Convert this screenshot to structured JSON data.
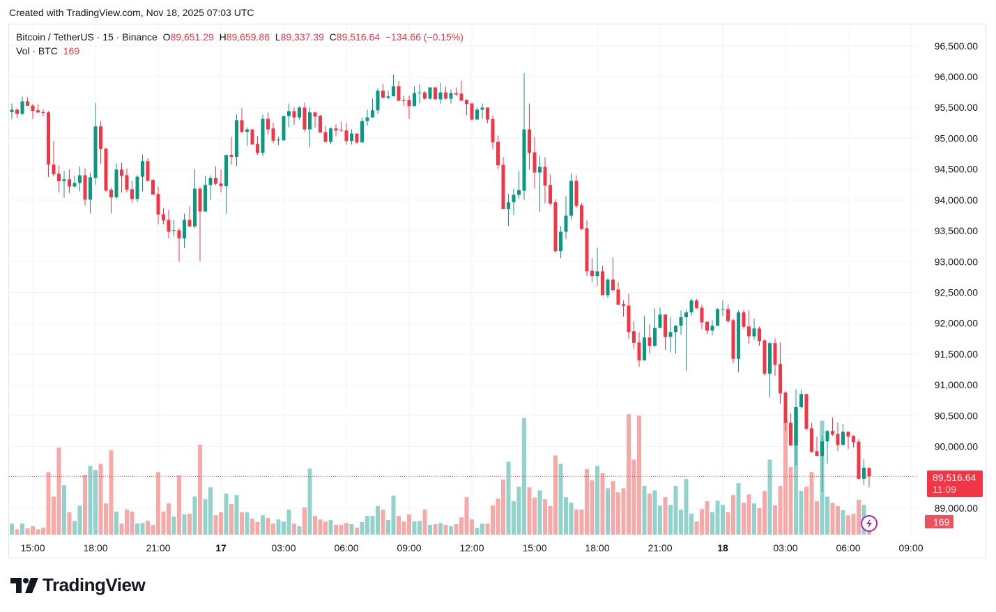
{
  "header": {
    "created": "Created with TradingView.com, Nov 18, 2025 07:03 UTC"
  },
  "legend": {
    "symbol": "Bitcoin / TetherUS · 15 · Binance",
    "o_label": "O",
    "o": "89,651.29",
    "h_label": "H",
    "h": "89,659.86",
    "l_label": "L",
    "l": "89,337.39",
    "c_label": "C",
    "c": "89,516.64",
    "change": "−134.66 (−0.15%)",
    "vol_label": "Vol · BTC",
    "vol": "169"
  },
  "badges": {
    "price": "89,516.64",
    "countdown": "11:09",
    "volume": "169"
  },
  "footer": {
    "logo": "TradingView"
  },
  "colors": {
    "up": "#089981",
    "down": "#f23645",
    "up_volume": "#92d2cc",
    "down_volume": "#f7a9a7",
    "grid": "#f0f3fa",
    "lightning": "#9c27b0"
  },
  "icons": [
    "lightning-icon",
    "tradingview-logo-icon"
  ],
  "chart_data": {
    "type": "candlestick",
    "interval": "15",
    "price_ticks": [
      "96,500.00",
      "96,000.00",
      "95,500.00",
      "95,000.00",
      "94,500.00",
      "94,000.00",
      "93,500.00",
      "93,000.00",
      "92,500.00",
      "92,000.00",
      "91,500.00",
      "91,000.00",
      "90,500.00",
      "90,000.00",
      "89,000.00"
    ],
    "price_tick_values": [
      96500,
      96000,
      95500,
      95000,
      94500,
      94000,
      93500,
      93000,
      92500,
      92000,
      91500,
      91000,
      90500,
      90000,
      89000
    ],
    "time_ticks": [
      {
        "label": "15:00",
        "bold": false
      },
      {
        "label": "18:00",
        "bold": false
      },
      {
        "label": "21:00",
        "bold": false
      },
      {
        "label": "17",
        "bold": true
      },
      {
        "label": "03:00",
        "bold": false
      },
      {
        "label": "06:00",
        "bold": false
      },
      {
        "label": "09:00",
        "bold": false
      },
      {
        "label": "12:00",
        "bold": false
      },
      {
        "label": "15:00",
        "bold": false
      },
      {
        "label": "18:00",
        "bold": false
      },
      {
        "label": "21:00",
        "bold": false
      },
      {
        "label": "18",
        "bold": true
      },
      {
        "label": "03:00",
        "bold": false
      },
      {
        "label": "06:00",
        "bold": false
      },
      {
        "label": "09:00",
        "bold": false
      }
    ],
    "last_price": 89516.64,
    "grid": true,
    "candle_fields": [
      "open",
      "high",
      "low",
      "close",
      "volume"
    ],
    "candles": [
      [
        95425,
        95565,
        95310,
        95464,
        141
      ],
      [
        95464,
        95488,
        95333,
        95396,
        68
      ],
      [
        95396,
        95676,
        95377,
        95600,
        141
      ],
      [
        95600,
        95667,
        95527,
        95527,
        80
      ],
      [
        95530,
        95560,
        95310,
        95444,
        106
      ],
      [
        95454,
        95551,
        95410,
        95420,
        68
      ],
      [
        95425,
        95474,
        95358,
        95411,
        87
      ],
      [
        95420,
        95440,
        94372,
        94575,
        798
      ],
      [
        94575,
        94957,
        94382,
        94416,
        486
      ],
      [
        94425,
        94561,
        94121,
        94305,
        1110
      ],
      [
        94305,
        94474,
        94034,
        94334,
        631
      ],
      [
        94334,
        94493,
        94111,
        94218,
        285
      ],
      [
        94218,
        94392,
        94198,
        94276,
        175
      ],
      [
        94276,
        94546,
        94140,
        94401,
        372
      ],
      [
        94401,
        94512,
        93909,
        94005,
        764
      ],
      [
        94005,
        94445,
        93778,
        94368,
        878
      ],
      [
        94358,
        95575,
        94247,
        95193,
        825
      ],
      [
        95193,
        95280,
        94580,
        94826,
        904
      ],
      [
        94831,
        94850,
        94140,
        94150,
        399
      ],
      [
        94165,
        94198,
        93778,
        94044,
        1075
      ],
      [
        94044,
        94594,
        94020,
        94493,
        293
      ],
      [
        94493,
        94604,
        94121,
        94392,
        141
      ],
      [
        94401,
        94512,
        94121,
        94165,
        319
      ],
      [
        94174,
        94310,
        93947,
        94015,
        293
      ],
      [
        94015,
        94401,
        93967,
        94377,
        141
      ],
      [
        94377,
        94739,
        94140,
        94628,
        148
      ],
      [
        94628,
        94677,
        94300,
        94310,
        175
      ],
      [
        94324,
        94340,
        94087,
        94087,
        125
      ],
      [
        94097,
        94218,
        93604,
        93764,
        798
      ],
      [
        93769,
        93870,
        93604,
        93667,
        293
      ],
      [
        93677,
        93836,
        93377,
        93484,
        399
      ],
      [
        93508,
        93677,
        93411,
        93510,
        232
      ],
      [
        93508,
        93546,
        93000,
        93377,
        756
      ],
      [
        93377,
        93778,
        93218,
        93677,
        258
      ],
      [
        93677,
        93894,
        93571,
        93571,
        266
      ],
      [
        93571,
        94502,
        93546,
        94184,
        486
      ],
      [
        94184,
        94208,
        93010,
        93812,
        1148
      ],
      [
        93812,
        94392,
        93807,
        94242,
        452
      ],
      [
        94242,
        94401,
        94000,
        94358,
        604
      ],
      [
        94358,
        94546,
        94237,
        94262,
        247
      ],
      [
        94266,
        94493,
        94121,
        94223,
        285
      ],
      [
        94223,
        94730,
        93773,
        94730,
        524
      ],
      [
        94730,
        95024,
        94575,
        94700,
        391
      ],
      [
        94700,
        95387,
        94546,
        95295,
        505
      ],
      [
        95295,
        95488,
        95082,
        95106,
        285
      ],
      [
        95106,
        95179,
        94875,
        95145,
        285
      ],
      [
        95145,
        95145,
        94899,
        94899,
        205
      ],
      [
        94908,
        95039,
        94730,
        94763,
        160
      ],
      [
        94763,
        95387,
        94706,
        95314,
        247
      ],
      [
        95314,
        95420,
        95058,
        95145,
        213
      ],
      [
        95160,
        95247,
        94923,
        94962,
        141
      ],
      [
        94975,
        95024,
        94889,
        94978,
        194
      ],
      [
        94966,
        95362,
        94966,
        95362,
        167
      ],
      [
        95362,
        95565,
        95179,
        95440,
        319
      ],
      [
        95440,
        95507,
        95213,
        95338,
        141
      ],
      [
        95338,
        95522,
        95304,
        95498,
        106
      ],
      [
        95498,
        95580,
        95106,
        95145,
        346
      ],
      [
        95145,
        95498,
        94855,
        95420,
        844
      ],
      [
        95420,
        95430,
        95174,
        95353,
        239
      ],
      [
        95367,
        95377,
        95092,
        95092,
        194
      ],
      [
        95102,
        95203,
        94933,
        94942,
        167
      ],
      [
        94942,
        95179,
        94904,
        95160,
        186
      ],
      [
        95160,
        95227,
        95034,
        95126,
        125
      ],
      [
        95135,
        95271,
        95106,
        95130,
        125
      ],
      [
        95126,
        95247,
        94899,
        94957,
        148
      ],
      [
        94957,
        95145,
        94899,
        95078,
        133
      ],
      [
        95078,
        95078,
        94908,
        94933,
        87
      ],
      [
        94933,
        95338,
        94933,
        95280,
        160
      ],
      [
        95280,
        95464,
        95203,
        95338,
        239
      ],
      [
        95338,
        95643,
        95338,
        95454,
        239
      ],
      [
        95454,
        95812,
        95396,
        95773,
        365
      ],
      [
        95773,
        95884,
        95657,
        95657,
        319
      ],
      [
        95657,
        95768,
        95633,
        95681,
        186
      ],
      [
        95681,
        96034,
        95681,
        95845,
        498
      ],
      [
        95845,
        95932,
        95609,
        95609,
        239
      ],
      [
        95618,
        95691,
        95531,
        95613,
        167
      ],
      [
        95623,
        95691,
        95314,
        95522,
        258
      ],
      [
        95522,
        95845,
        95522,
        95734,
        167
      ],
      [
        95734,
        95874,
        95565,
        95744,
        175
      ],
      [
        95744,
        95768,
        95628,
        95643,
        319
      ],
      [
        95643,
        95826,
        95628,
        95826,
        125
      ],
      [
        95826,
        95826,
        95628,
        95633,
        133
      ],
      [
        95633,
        95899,
        95556,
        95744,
        148
      ],
      [
        95744,
        95836,
        95628,
        95643,
        125
      ],
      [
        95643,
        95792,
        95565,
        95734,
        106
      ],
      [
        95734,
        95826,
        95691,
        95710,
        133
      ],
      [
        95725,
        95937,
        95609,
        95609,
        220
      ],
      [
        95623,
        95633,
        95372,
        95556,
        479
      ],
      [
        95565,
        95575,
        95285,
        95304,
        194
      ],
      [
        95304,
        95498,
        95304,
        95464,
        87
      ],
      [
        95464,
        95565,
        95314,
        95498,
        141
      ],
      [
        95498,
        95498,
        95247,
        95304,
        141
      ],
      [
        95314,
        95372,
        94822,
        94933,
        372
      ],
      [
        94942,
        95044,
        94503,
        94561,
        460
      ],
      [
        94570,
        94696,
        93851,
        93851,
        703
      ],
      [
        93851,
        94097,
        93580,
        93962,
        931
      ],
      [
        93962,
        94184,
        93759,
        94083,
        426
      ],
      [
        94083,
        94469,
        94015,
        94160,
        612
      ],
      [
        94150,
        96058,
        94000,
        95145,
        1486
      ],
      [
        95145,
        95565,
        94493,
        94763,
        604
      ],
      [
        94773,
        95024,
        94184,
        94445,
        471
      ],
      [
        94445,
        94720,
        93812,
        94537,
        566
      ],
      [
        94537,
        94696,
        93947,
        94232,
        452
      ],
      [
        94242,
        94411,
        93913,
        93942,
        365
      ],
      [
        93962,
        94015,
        93146,
        93170,
        1011
      ],
      [
        93170,
        93571,
        93054,
        93484,
        904
      ],
      [
        93484,
        94063,
        93363,
        93744,
        479
      ],
      [
        93744,
        94425,
        93677,
        94310,
        407
      ],
      [
        94310,
        94401,
        93870,
        93904,
        319
      ],
      [
        93914,
        93947,
        93517,
        93528,
        319
      ],
      [
        93542,
        93667,
        92764,
        92841,
        836
      ],
      [
        92851,
        93054,
        92662,
        92764,
        692
      ],
      [
        92764,
        93228,
        92604,
        92841,
        878
      ],
      [
        92841,
        92933,
        92455,
        92455,
        783
      ],
      [
        92455,
        92730,
        92411,
        92706,
        593
      ],
      [
        92706,
        93068,
        92503,
        92537,
        684
      ],
      [
        92547,
        92662,
        92300,
        92300,
        540
      ],
      [
        92310,
        92368,
        92107,
        92281,
        593
      ],
      [
        92286,
        92479,
        91745,
        91856,
        1539
      ],
      [
        91870,
        92025,
        91585,
        91682,
        958
      ],
      [
        91687,
        91856,
        91292,
        91397,
        1520
      ],
      [
        91397,
        92117,
        91397,
        91769,
        623
      ],
      [
        91769,
        91982,
        91508,
        91634,
        524
      ],
      [
        91634,
        92242,
        91610,
        91924,
        566
      ],
      [
        91924,
        92252,
        91924,
        92141,
        372
      ],
      [
        92141,
        92141,
        91566,
        91779,
        479
      ],
      [
        91779,
        92097,
        91527,
        91856,
        380
      ],
      [
        91856,
        91972,
        91508,
        91958,
        623
      ],
      [
        91958,
        92208,
        91812,
        92097,
        319
      ],
      [
        92097,
        92218,
        91223,
        92175,
        711
      ],
      [
        92175,
        92402,
        92117,
        92368,
        266
      ],
      [
        92368,
        92392,
        92237,
        92242,
        167
      ],
      [
        92252,
        92300,
        91904,
        92015,
        327
      ],
      [
        92025,
        92025,
        91822,
        91880,
        426
      ],
      [
        91880,
        92049,
        91803,
        91958,
        285
      ],
      [
        91958,
        92242,
        91958,
        92228,
        433
      ],
      [
        92228,
        92368,
        92117,
        92233,
        380
      ],
      [
        92228,
        92300,
        92006,
        92035,
        285
      ],
      [
        92049,
        92073,
        91349,
        91422,
        505
      ],
      [
        91422,
        92208,
        91204,
        92175,
        657
      ],
      [
        92175,
        92218,
        91914,
        91943,
        407
      ],
      [
        91948,
        92208,
        91667,
        91788,
        513
      ],
      [
        91788,
        92073,
        91735,
        91914,
        399
      ],
      [
        91914,
        91948,
        91634,
        91711,
        338
      ],
      [
        91721,
        91745,
        91146,
        91180,
        559
      ],
      [
        91180,
        91701,
        90794,
        91677,
        958
      ],
      [
        91677,
        91754,
        91146,
        91325,
        372
      ],
      [
        91339,
        91687,
        90692,
        90861,
        623
      ],
      [
        90876,
        90895,
        90257,
        90383,
        1455
      ],
      [
        90383,
        90542,
        90016,
        90016,
        863
      ],
      [
        90016,
        90929,
        89697,
        90639,
        1626
      ],
      [
        90639,
        90919,
        90610,
        90852,
        559
      ],
      [
        90852,
        90852,
        90267,
        90286,
        612
      ],
      [
        90296,
        90383,
        89900,
        89914,
        798
      ],
      [
        89924,
        90160,
        89846,
        89846,
        426
      ],
      [
        89846,
        90175,
        89261,
        90083,
        1455
      ],
      [
        90083,
        90262,
        89721,
        90252,
        486
      ],
      [
        90252,
        90470,
        90175,
        90194,
        407
      ],
      [
        90204,
        90392,
        89924,
        90025,
        365
      ],
      [
        90025,
        90368,
        90025,
        90238,
        312
      ],
      [
        90238,
        90243,
        89958,
        90160,
        247
      ],
      [
        90170,
        90185,
        89982,
        90069,
        266
      ],
      [
        90078,
        90117,
        89477,
        89477,
        445
      ],
      [
        89477,
        89798,
        89378,
        89656,
        380
      ],
      [
        89651.29,
        89659.86,
        89337.39,
        89516.64,
        169
      ]
    ]
  }
}
